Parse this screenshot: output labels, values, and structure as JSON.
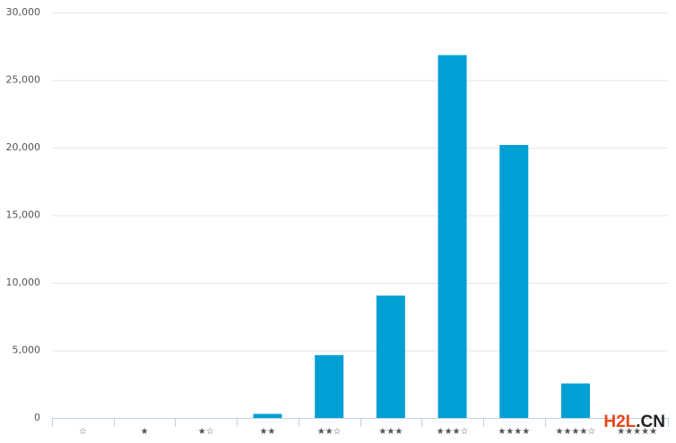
{
  "chart_data": {
    "type": "bar",
    "categories": [
      "☆",
      "★",
      "★☆",
      "★★",
      "★★☆",
      "★★★",
      "★★★☆",
      "★★★★",
      "★★★★☆",
      "★★★★★"
    ],
    "values": [
      0,
      0,
      0,
      300,
      4650,
      9050,
      26850,
      20200,
      2550,
      0
    ],
    "color": "#009fd4",
    "ylim": [
      0,
      30000
    ],
    "yticks": [
      0,
      {
        "value": 5000,
        "label": "5,000"
      },
      {
        "value": 10000,
        "label": "10,000"
      },
      {
        "value": 15000,
        "label": "15,000"
      },
      {
        "value": 20000,
        "label": "20,000"
      },
      {
        "value": 25000,
        "label": "25,000"
      },
      {
        "value": 30000,
        "label": "30,000"
      }
    ],
    "grid": true
  },
  "watermark": [
    "H2L",
    ".CN"
  ]
}
